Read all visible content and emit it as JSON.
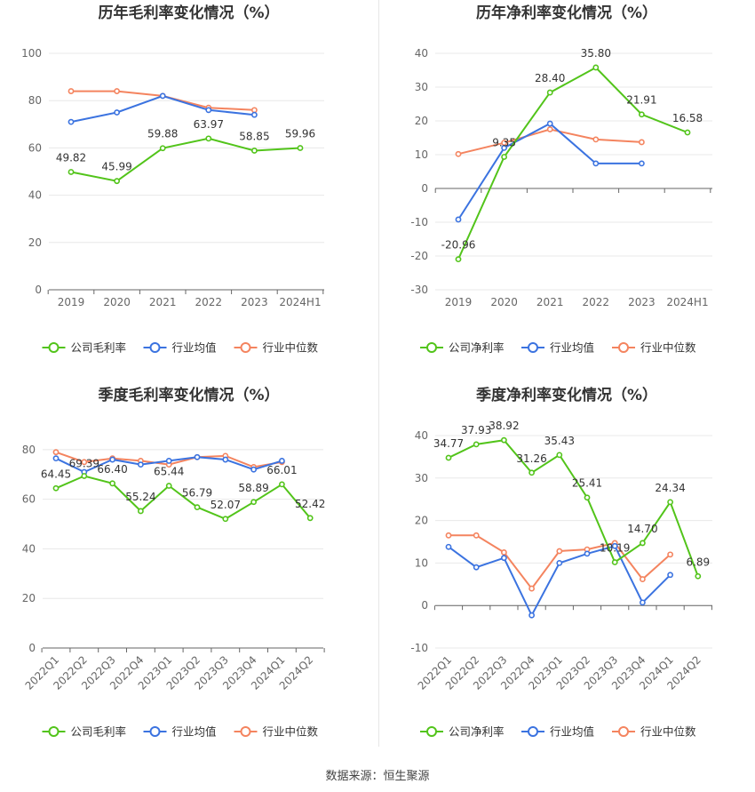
{
  "colors": {
    "company": "#52c41a",
    "industry_avg": "#3b73e0",
    "industry_median": "#f4845f",
    "grid": "#e8e8e8",
    "axis": "#666666",
    "text": "#333333"
  },
  "footer": "数据来源：恒生聚源",
  "chart_data": [
    {
      "type": "line",
      "title": "历年毛利率变化情况（%）",
      "categories": [
        "2019",
        "2020",
        "2021",
        "2022",
        "2023",
        "2024H1"
      ],
      "ylim": [
        0,
        100
      ],
      "yticks": [
        0,
        20,
        40,
        60,
        80,
        100
      ],
      "grid": true,
      "legend_position": "bottom",
      "series": [
        {
          "name": "公司毛利率",
          "color": "#52c41a",
          "values": [
            49.82,
            45.99,
            59.88,
            63.97,
            58.85,
            59.96
          ],
          "labels": [
            "49.82",
            "45.99",
            "59.88",
            "63.97",
            "58.85",
            "59.96"
          ]
        },
        {
          "name": "行业均值",
          "color": "#3b73e0",
          "values": [
            71,
            75,
            82,
            76,
            74,
            null
          ]
        },
        {
          "name": "行业中位数",
          "color": "#f4845f",
          "values": [
            84,
            84,
            82,
            77,
            76,
            null
          ]
        }
      ]
    },
    {
      "type": "line",
      "title": "历年净利率变化情况（%）",
      "categories": [
        "2019",
        "2020",
        "2021",
        "2022",
        "2023",
        "2024H1"
      ],
      "ylim": [
        -30,
        40
      ],
      "yticks": [
        -30,
        -20,
        -10,
        0,
        10,
        20,
        30,
        40
      ],
      "grid": true,
      "legend_position": "bottom",
      "series": [
        {
          "name": "公司净利率",
          "color": "#52c41a",
          "values": [
            -20.96,
            9.35,
            28.4,
            35.8,
            21.91,
            16.58
          ],
          "labels": [
            "-20.96",
            "9.35",
            "28.40",
            "35.80",
            "21.91",
            "16.58"
          ]
        },
        {
          "name": "行业均值",
          "color": "#3b73e0",
          "values": [
            -9.2,
            12.0,
            19.2,
            7.4,
            7.4,
            null
          ]
        },
        {
          "name": "行业中位数",
          "color": "#f4845f",
          "values": [
            10.2,
            13.5,
            17.5,
            14.5,
            13.7,
            null
          ]
        }
      ]
    },
    {
      "type": "line",
      "title": "季度毛利率变化情况（%）",
      "categories": [
        "2022Q1",
        "2022Q2",
        "2022Q3",
        "2022Q4",
        "2023Q1",
        "2023Q2",
        "2023Q3",
        "2023Q4",
        "2024Q1",
        "2024Q2"
      ],
      "ylim": [
        0,
        90
      ],
      "yticks": [
        0,
        20,
        40,
        60,
        80
      ],
      "grid": true,
      "legend_position": "bottom",
      "series": [
        {
          "name": "公司毛利率",
          "color": "#52c41a",
          "values": [
            64.45,
            69.39,
            66.4,
            55.24,
            65.44,
            56.79,
            52.07,
            58.89,
            66.01,
            52.42
          ],
          "labels": [
            "64.45",
            "69.39",
            "66.40",
            "55.24",
            "65.44",
            "56.79",
            "52.07",
            "58.89",
            "66.01",
            "52.42"
          ]
        },
        {
          "name": "行业均值",
          "color": "#3b73e0",
          "values": [
            76.5,
            71.0,
            76.0,
            74.0,
            75.5,
            77.0,
            76.0,
            72.0,
            75.5,
            null
          ]
        },
        {
          "name": "行业中位数",
          "color": "#f4845f",
          "values": [
            79.0,
            75.0,
            76.5,
            75.5,
            74.0,
            77.0,
            77.5,
            73.0,
            75.0,
            null
          ]
        }
      ]
    },
    {
      "type": "line",
      "title": "季度净利率变化情况（%）",
      "categories": [
        "2022Q1",
        "2022Q2",
        "2022Q3",
        "2022Q4",
        "2023Q1",
        "2023Q2",
        "2023Q3",
        "2023Q4",
        "2024Q1",
        "2024Q2"
      ],
      "ylim": [
        -10,
        40
      ],
      "yticks": [
        -10,
        0,
        10,
        20,
        30,
        40
      ],
      "grid": true,
      "legend_position": "bottom",
      "series": [
        {
          "name": "公司净利率",
          "color": "#52c41a",
          "values": [
            34.77,
            37.93,
            38.92,
            31.26,
            35.43,
            25.41,
            10.19,
            14.7,
            24.34,
            6.89
          ],
          "labels": [
            "34.77",
            "37.93",
            "38.92",
            "31.26",
            "35.43",
            "25.41",
            "10.19",
            "14.70",
            "24.34",
            "6.89"
          ]
        },
        {
          "name": "行业均值",
          "color": "#3b73e0",
          "values": [
            13.8,
            9.0,
            11.2,
            -2.3,
            10.0,
            12.2,
            14.0,
            0.7,
            7.2,
            null
          ]
        },
        {
          "name": "行业中位数",
          "color": "#f4845f",
          "values": [
            16.5,
            16.5,
            12.5,
            4.0,
            12.8,
            13.2,
            14.7,
            6.2,
            12.0,
            null
          ]
        }
      ]
    }
  ]
}
